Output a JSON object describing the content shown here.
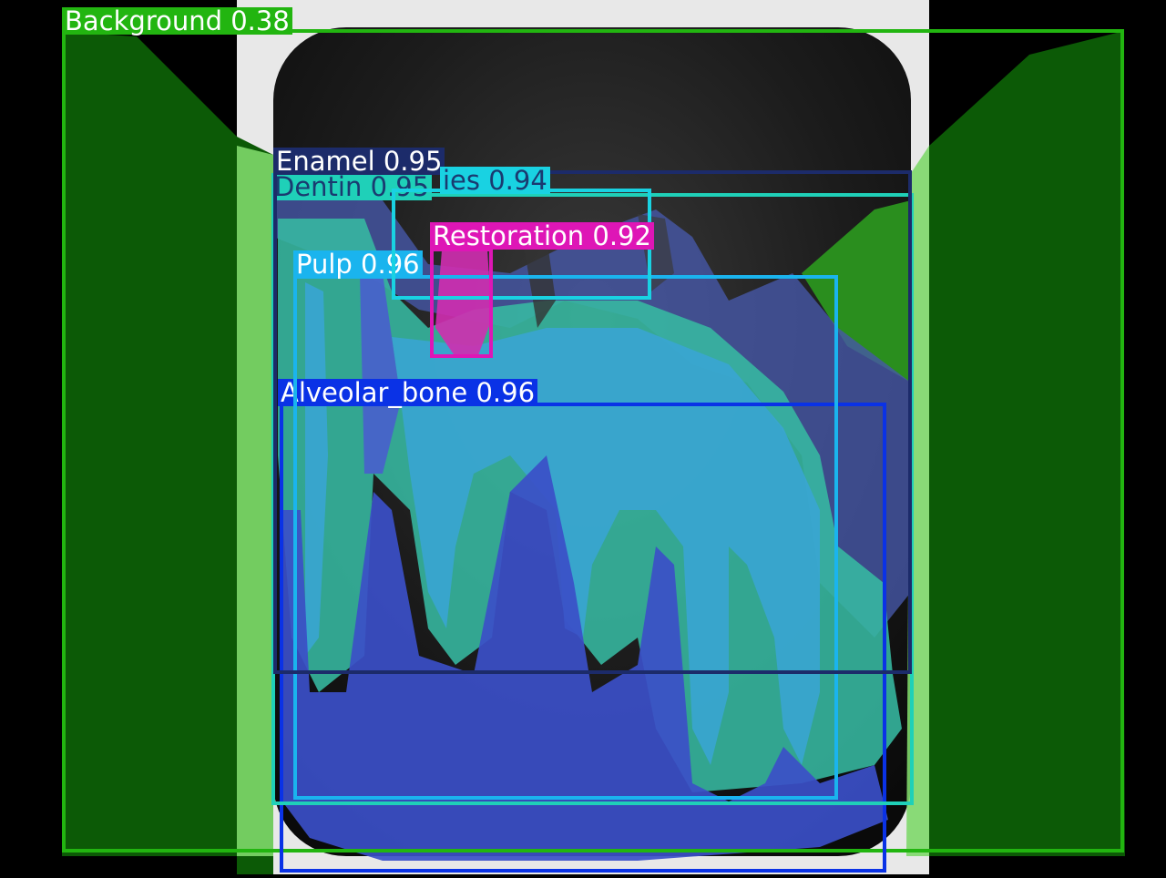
{
  "image": {
    "kind": "dental periapical radiograph with segmentation overlay"
  },
  "detections": [
    {
      "id": "background",
      "class": "Background",
      "score": "0.38",
      "color": "#22b510",
      "text_color": "#ffffff"
    },
    {
      "id": "enamel",
      "class": "Enamel",
      "score": "0.95",
      "color": "#1c2b6a",
      "text_color": "#ffffff"
    },
    {
      "id": "dentin",
      "class": "Dentin",
      "score": "0.95",
      "color": "#1fd0b8",
      "text_color": "#1a3a70"
    },
    {
      "id": "caries",
      "class": "Caries",
      "score": "0.94",
      "color": "#19d2e2",
      "text_color": "#1a3a70"
    },
    {
      "id": "restoration",
      "class": "Restoration",
      "score": "0.92",
      "color": "#de16b6",
      "text_color": "#ffffff"
    },
    {
      "id": "pulp",
      "class": "Pulp",
      "score": "0.96",
      "color": "#1ab4ee",
      "text_color": "#ffffff"
    },
    {
      "id": "alveolar-bone",
      "class": "Alveolar_bone",
      "score": "0.96",
      "color": "#0a32e6",
      "text_color": "#ffffff"
    }
  ],
  "labels": {
    "background": "Background 0.38",
    "enamel": "Enamel 0.95",
    "dentin": "Dentin 0.95",
    "caries": "ies 0.94",
    "restoration": "Restoration 0.92",
    "pulp": "Pulp 0.96",
    "alveolar-bone": "Alveolar_bone 0.96"
  }
}
